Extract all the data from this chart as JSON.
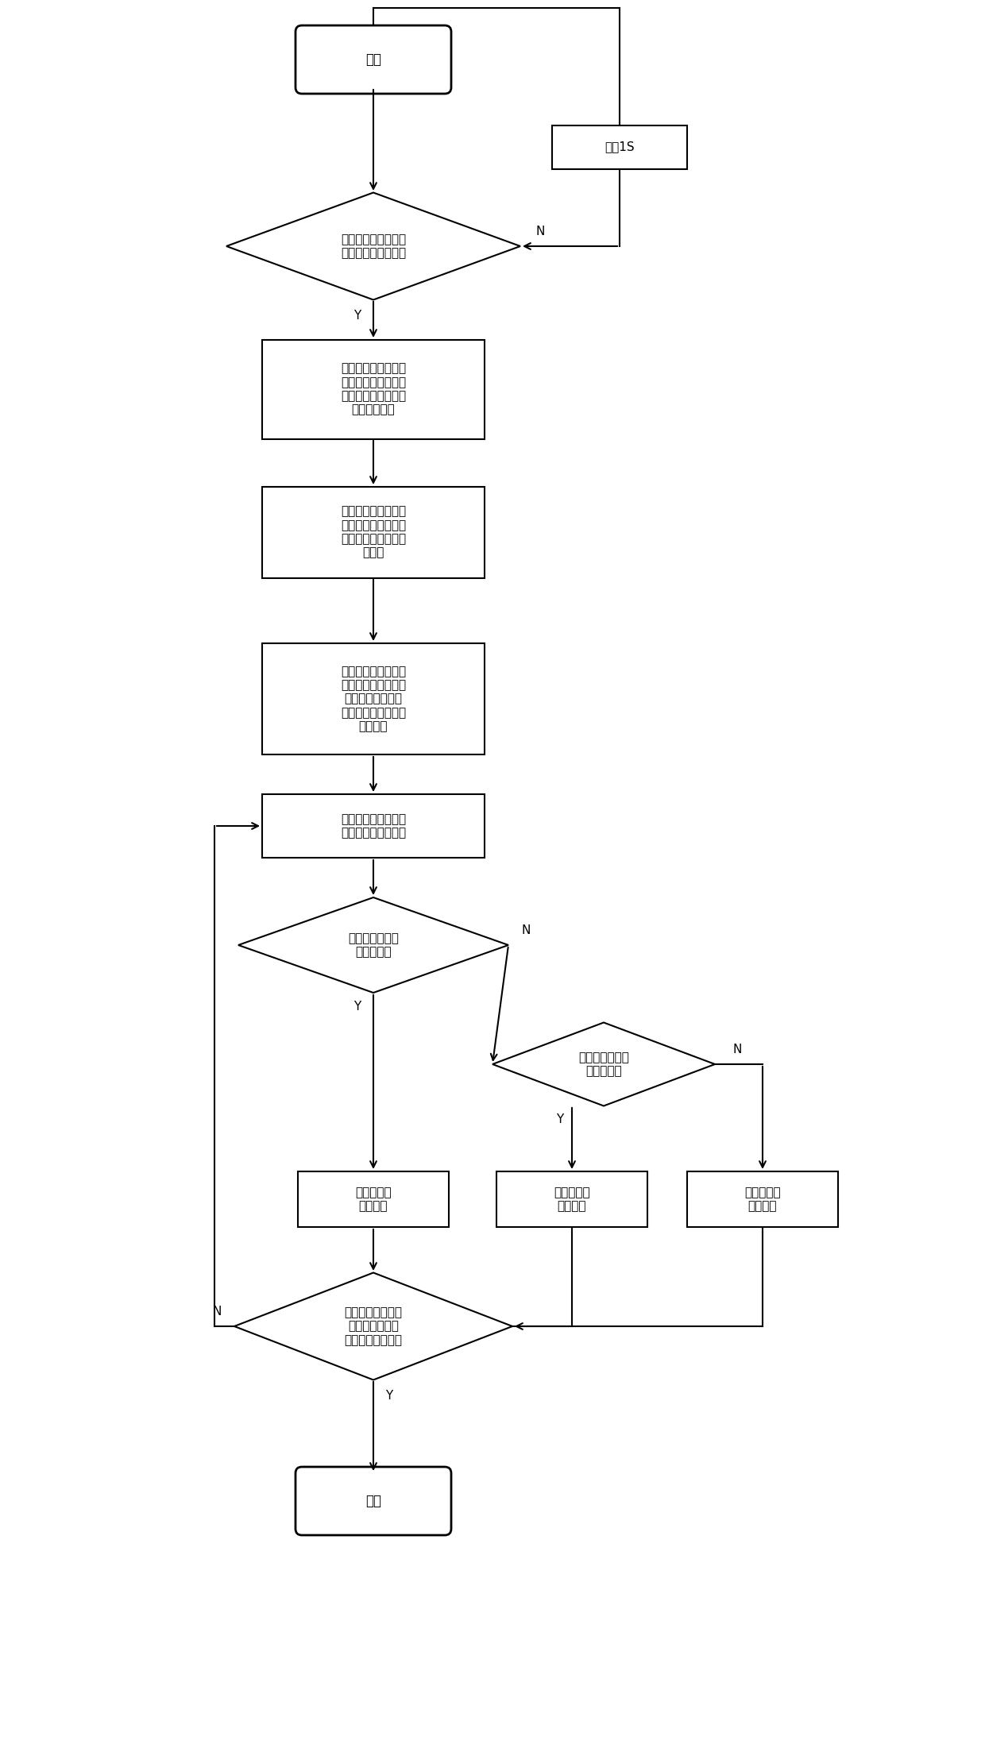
{
  "bg_color": "#ffffff",
  "line_color": "#000000",
  "text_color": "#000000",
  "font_size": 11,
  "nodes": {
    "start": {
      "label": "开始",
      "type": "rounded_rect"
    },
    "delay": {
      "label": "延时1S",
      "type": "rect"
    },
    "diamond1": {
      "label": "检测是否有定位和测\n温装置处于工作状态",
      "type": "diamond"
    },
    "box1": {
      "label": "定位设备通过各个接\n入点得测目标位置，\n并把位置信息发送给\n协调控制系统",
      "type": "rect"
    },
    "box2": {
      "label": "接触式温度传感器测\n取人体温度，并把温\n度信息发送给协调控\n制系统",
      "type": "rect"
    },
    "box3": {
      "label": "协调控制系统根据定\n位和测温装置的位置\n制定相应的控制策\n略，并把策略发送给\n加热装置",
      "type": "rect"
    },
    "box4": {
      "label": "加热装置接受控制策\n略，对目标进行加热",
      "type": "rect"
    },
    "diamond2": {
      "label": "该温度等于计划\n达到的温度",
      "type": "diamond"
    },
    "diamond3": {
      "label": "该温度大于计划\n达到的温度",
      "type": "diamond"
    },
    "box5": {
      "label": "保持加热装\n置的功率",
      "type": "rect"
    },
    "box6": {
      "label": "减小加热装\n置的功率",
      "type": "rect"
    },
    "box7": {
      "label": "增大加热装\n置的功率",
      "type": "rect"
    },
    "diamond4": {
      "label": "协同控制系统判断\n是否有定位和测\n温装置打开或关闭",
      "type": "diamond"
    },
    "end": {
      "label": "结束",
      "type": "rounded_rect"
    }
  },
  "label_N": "N",
  "label_Y": "Y"
}
